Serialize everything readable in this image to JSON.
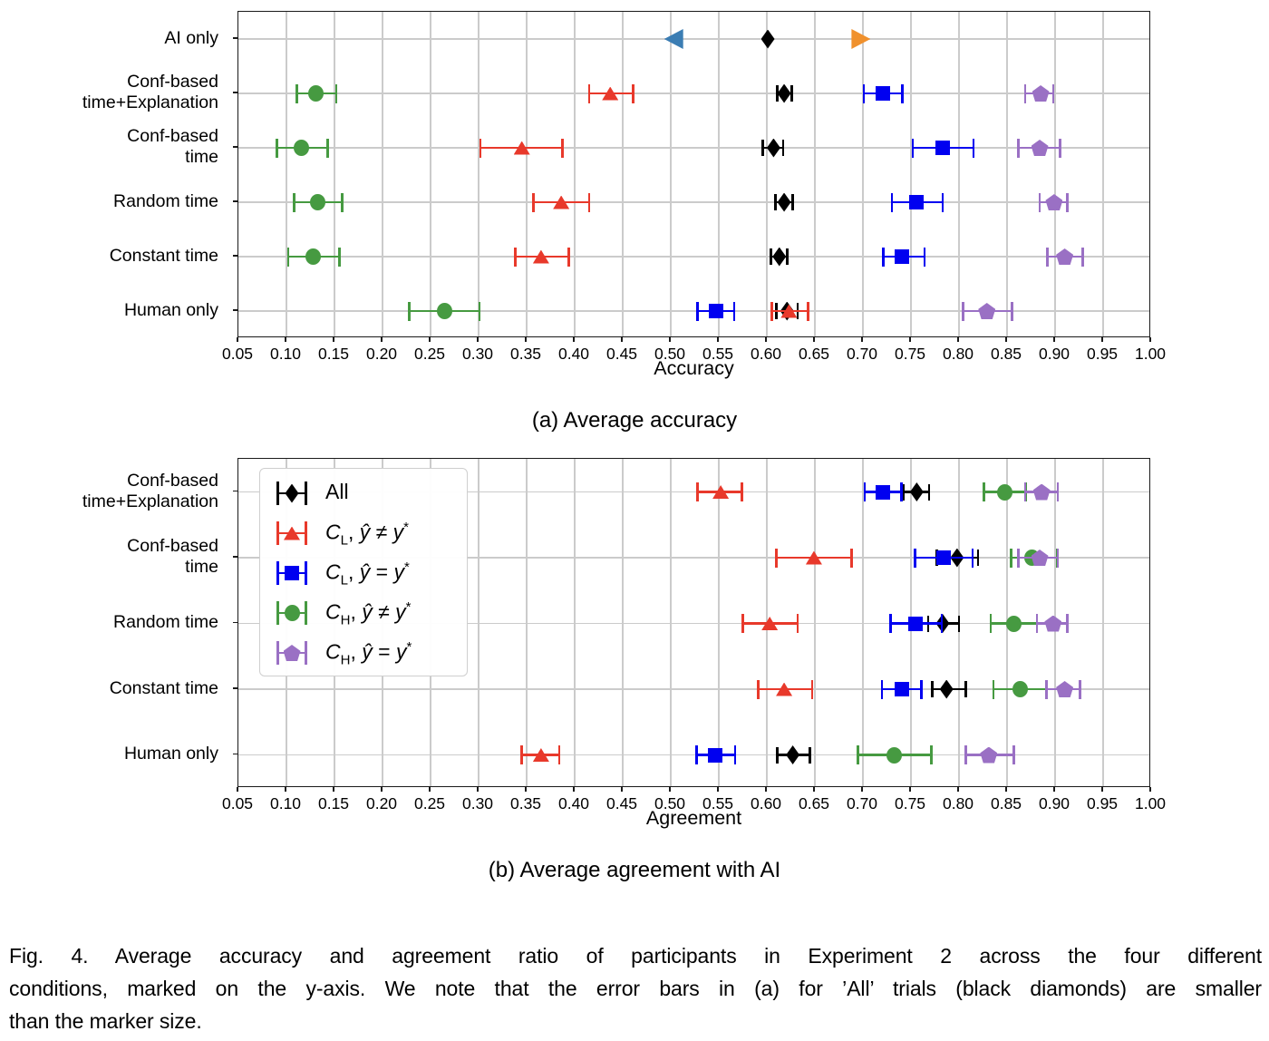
{
  "figure": {
    "subtitle_a": "(a) Average accuracy",
    "subtitle_b": "(b) Average agreement with AI",
    "caption_lines": [
      "Fig. 4.  Average accuracy and agreement ratio of participants in Experiment 2 across the four different",
      "conditions, marked on the y-axis. We note that the error bars in (a) for ’All’ trials (black diamonds) are smaller",
      "than the marker size."
    ]
  },
  "colors": {
    "all": "#000000",
    "cl_wrong": "#e8392b",
    "cl_right": "#0000f0",
    "ch_wrong": "#469a41",
    "ch_right": "#9a70c4",
    "ai_low": "#3b7db3",
    "ai_high": "#f0912d",
    "grid": "#cbcbcb"
  },
  "legend": {
    "items": [
      {
        "text": "All",
        "marker": "diamond",
        "color": "#000000"
      },
      {
        "parts": {
          "base": "C",
          "sub": "L",
          "sep": ", ",
          "hat": "ŷ",
          "rel": "≠",
          "y": "y",
          "sup": "*"
        },
        "marker": "tri",
        "color": "#e8392b"
      },
      {
        "parts": {
          "base": "C",
          "sub": "L",
          "sep": ", ",
          "hat": "ŷ",
          "rel": "=",
          "y": "y",
          "sup": "*"
        },
        "marker": "square",
        "color": "#0000f0"
      },
      {
        "parts": {
          "base": "C",
          "sub": "H",
          "sep": ", ",
          "hat": "ŷ",
          "rel": "≠",
          "y": "y",
          "sup": "*"
        },
        "marker": "circle",
        "color": "#469a41"
      },
      {
        "parts": {
          "base": "C",
          "sub": "H",
          "sep": ", ",
          "hat": "ŷ",
          "rel": "=",
          "y": "y",
          "sup": "*"
        },
        "marker": "pentagon",
        "color": "#9a70c4"
      }
    ]
  },
  "chart_data": [
    {
      "type": "scatter",
      "title": "(a) Average accuracy",
      "xlabel": "Accuracy",
      "xlim": [
        0.05,
        1.0
      ],
      "grid": true,
      "xtick_labels": [
        "0.05",
        "0.10",
        "0.15",
        "0.20",
        "0.25",
        "0.30",
        "0.35",
        "0.40",
        "0.45",
        "0.50",
        "0.55",
        "0.60",
        "0.65",
        "0.70",
        "0.75",
        "0.80",
        "0.85",
        "0.90",
        "0.95",
        "1.00"
      ],
      "categories": [
        "AI only",
        "Conf-based\ntime+Explanation",
        "Conf-based\ntime",
        "Random time",
        "Constant time",
        "Human only"
      ],
      "ai_only_markers": [
        {
          "name": "ai-low-threshold",
          "marker": "tril",
          "color": "#3b7db3",
          "value": 0.503
        },
        {
          "name": "ai-accuracy",
          "marker": "diamond",
          "color": "#000000",
          "value": 0.601
        },
        {
          "name": "ai-high-threshold",
          "marker": "trir",
          "color": "#f0912d",
          "value": 0.698
        }
      ],
      "series": [
        {
          "name": "All",
          "marker": "diamond",
          "color": "#000000",
          "values": [
            null,
            [
              0.618,
              0.611,
              0.626
            ],
            [
              0.607,
              0.596,
              0.617
            ],
            [
              0.618,
              0.609,
              0.627
            ],
            [
              0.613,
              0.604,
              0.621
            ],
            [
              0.621,
              0.61,
              0.632
            ]
          ]
        },
        {
          "name": "C_L, ŷ ≠ y*",
          "marker": "tri",
          "color": "#e8392b",
          "values": [
            null,
            [
              0.437,
              0.415,
              0.461
            ],
            [
              0.345,
              0.302,
              0.387
            ],
            [
              0.386,
              0.357,
              0.415
            ],
            [
              0.365,
              0.338,
              0.394
            ],
            [
              0.623,
              0.605,
              0.643
            ]
          ]
        },
        {
          "name": "C_L, ŷ = y*",
          "marker": "square",
          "color": "#0000f0",
          "values": [
            null,
            [
              0.721,
              0.701,
              0.741
            ],
            [
              0.783,
              0.752,
              0.815
            ],
            [
              0.756,
              0.73,
              0.783
            ],
            [
              0.741,
              0.721,
              0.764
            ],
            [
              0.547,
              0.528,
              0.566
            ]
          ]
        },
        {
          "name": "C_H, ŷ ≠ y*",
          "marker": "circle",
          "color": "#469a41",
          "values": [
            null,
            [
              0.131,
              0.111,
              0.152
            ],
            [
              0.116,
              0.09,
              0.143
            ],
            [
              0.133,
              0.108,
              0.158
            ],
            [
              0.128,
              0.102,
              0.155
            ],
            [
              0.265,
              0.228,
              0.301
            ]
          ]
        },
        {
          "name": "C_H, ŷ = y*",
          "marker": "pentagon",
          "color": "#9a70c4",
          "values": [
            null,
            [
              0.885,
              0.869,
              0.898
            ],
            [
              0.884,
              0.862,
              0.905
            ],
            [
              0.899,
              0.884,
              0.913
            ],
            [
              0.91,
              0.892,
              0.929
            ],
            [
              0.829,
              0.804,
              0.855
            ]
          ]
        }
      ]
    },
    {
      "type": "scatter",
      "title": "(b) Average agreement with AI",
      "xlabel": "Agreement",
      "xlim": [
        0.05,
        1.0
      ],
      "grid": true,
      "xtick_labels": [
        "0.05",
        "0.10",
        "0.15",
        "0.20",
        "0.25",
        "0.30",
        "0.35",
        "0.40",
        "0.45",
        "0.50",
        "0.55",
        "0.60",
        "0.65",
        "0.70",
        "0.75",
        "0.80",
        "0.85",
        "0.90",
        "0.95",
        "1.00"
      ],
      "categories": [
        "Conf-based\ntime+Explanation",
        "Conf-based\ntime",
        "Random time",
        "Constant time",
        "Human only"
      ],
      "series": [
        {
          "name": "All",
          "marker": "diamond",
          "color": "#000000",
          "values": [
            [
              0.756,
              0.742,
              0.769
            ],
            [
              0.798,
              0.777,
              0.82
            ],
            [
              0.783,
              0.768,
              0.8
            ],
            [
              0.787,
              0.772,
              0.807
            ],
            [
              0.627,
              0.611,
              0.645
            ]
          ]
        },
        {
          "name": "C_L, ŷ ≠ y*",
          "marker": "tri",
          "color": "#e8392b",
          "values": [
            [
              0.552,
              0.528,
              0.574
            ],
            [
              0.649,
              0.61,
              0.688
            ],
            [
              0.603,
              0.575,
              0.632
            ],
            [
              0.618,
              0.591,
              0.647
            ],
            [
              0.365,
              0.345,
              0.384
            ]
          ]
        },
        {
          "name": "C_L, ŷ = y*",
          "marker": "square",
          "color": "#0000f0",
          "values": [
            [
              0.721,
              0.702,
              0.74
            ],
            [
              0.784,
              0.754,
              0.814
            ],
            [
              0.755,
              0.729,
              0.782
            ],
            [
              0.741,
              0.72,
              0.761
            ],
            [
              0.546,
              0.527,
              0.567
            ]
          ]
        },
        {
          "name": "C_H, ŷ ≠ y*",
          "marker": "circle",
          "color": "#469a41",
          "values": [
            [
              0.848,
              0.826,
              0.87
            ],
            [
              0.876,
              0.854,
              0.902
            ],
            [
              0.857,
              0.833,
              0.881
            ],
            [
              0.864,
              0.836,
              0.891
            ],
            [
              0.733,
              0.695,
              0.771
            ]
          ]
        },
        {
          "name": "C_H, ŷ = y*",
          "marker": "pentagon",
          "color": "#9a70c4",
          "values": [
            [
              0.886,
              0.869,
              0.903
            ],
            [
              0.884,
              0.862,
              0.903
            ],
            [
              0.898,
              0.881,
              0.913
            ],
            [
              0.91,
              0.891,
              0.926
            ],
            [
              0.831,
              0.807,
              0.857
            ]
          ]
        }
      ]
    }
  ]
}
